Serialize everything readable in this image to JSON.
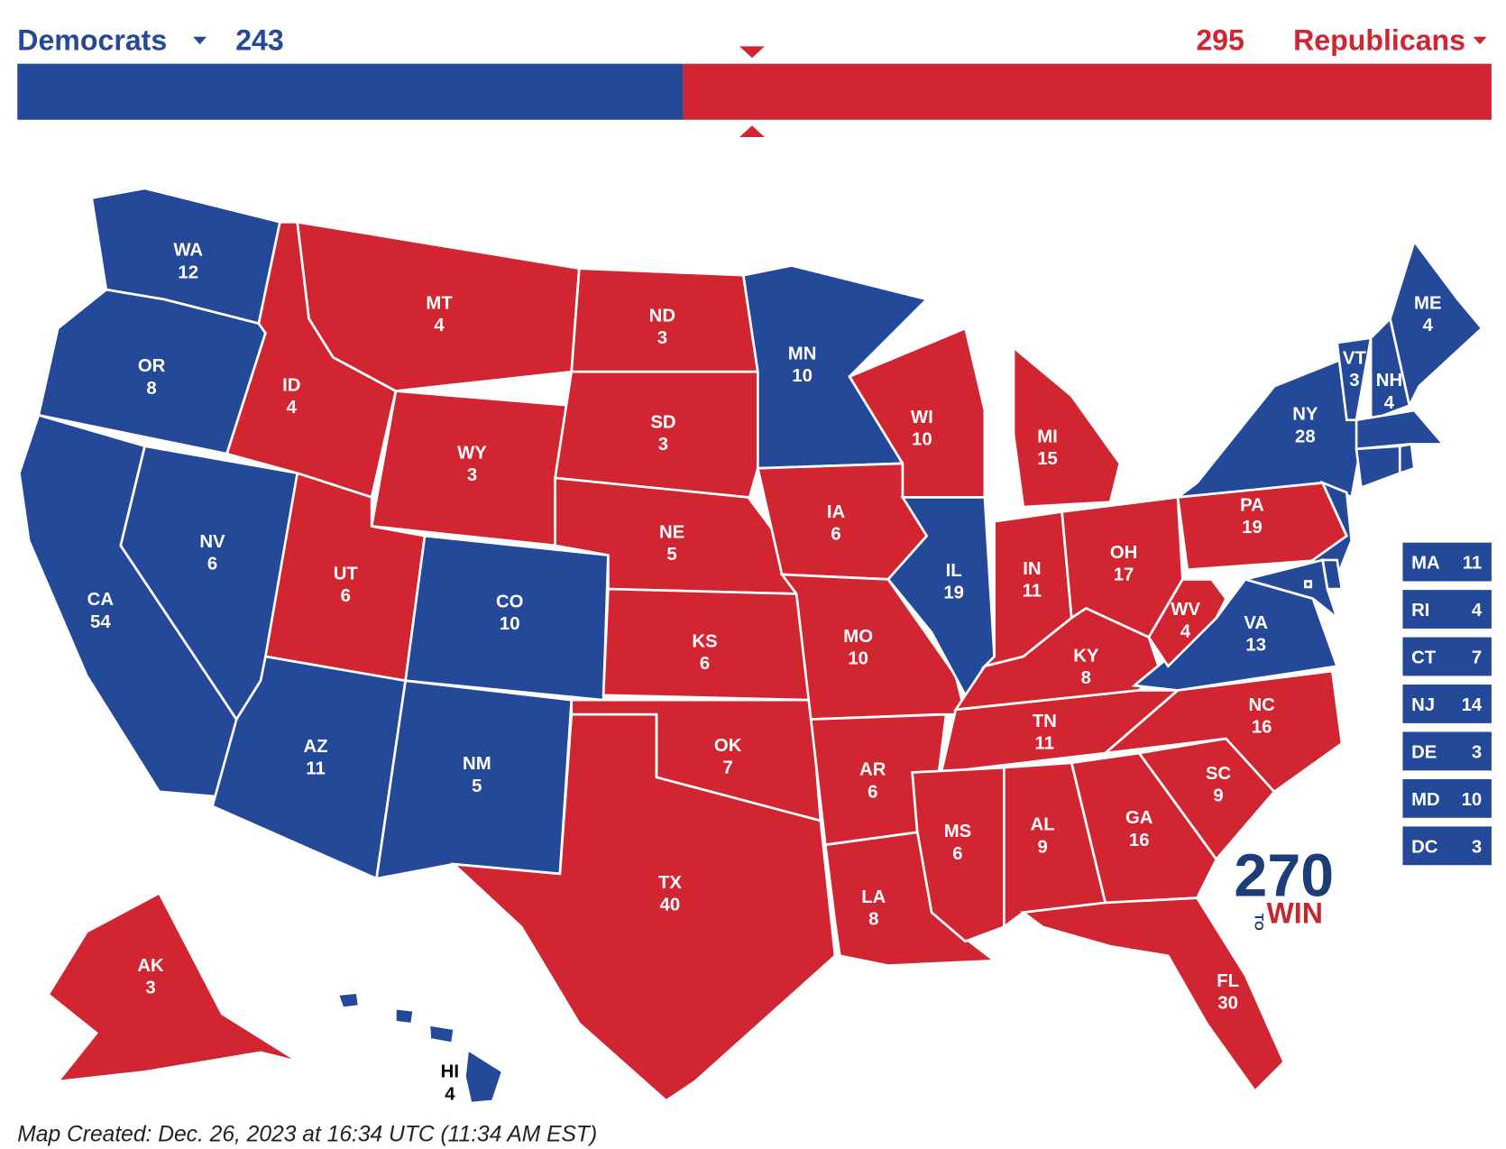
{
  "header": {
    "democrats": {
      "name": "Democrats",
      "total": 243,
      "color": "#244999"
    },
    "republicans": {
      "name": "Republicans",
      "total": 295,
      "color": "#d22532"
    }
  },
  "states": [
    {
      "abbr": "WA",
      "ev": 12,
      "party": "democrats"
    },
    {
      "abbr": "OR",
      "ev": 8,
      "party": "democrats"
    },
    {
      "abbr": "CA",
      "ev": 54,
      "party": "democrats"
    },
    {
      "abbr": "NV",
      "ev": 6,
      "party": "democrats"
    },
    {
      "abbr": "ID",
      "ev": 4,
      "party": "republicans"
    },
    {
      "abbr": "MT",
      "ev": 4,
      "party": "republicans"
    },
    {
      "abbr": "WY",
      "ev": 3,
      "party": "republicans"
    },
    {
      "abbr": "UT",
      "ev": 6,
      "party": "republicans"
    },
    {
      "abbr": "CO",
      "ev": 10,
      "party": "democrats"
    },
    {
      "abbr": "AZ",
      "ev": 11,
      "party": "democrats"
    },
    {
      "abbr": "NM",
      "ev": 5,
      "party": "democrats"
    },
    {
      "abbr": "ND",
      "ev": 3,
      "party": "republicans"
    },
    {
      "abbr": "SD",
      "ev": 3,
      "party": "republicans"
    },
    {
      "abbr": "NE",
      "ev": 5,
      "party": "republicans"
    },
    {
      "abbr": "KS",
      "ev": 6,
      "party": "republicans"
    },
    {
      "abbr": "OK",
      "ev": 7,
      "party": "republicans"
    },
    {
      "abbr": "TX",
      "ev": 40,
      "party": "republicans"
    },
    {
      "abbr": "MN",
      "ev": 10,
      "party": "democrats"
    },
    {
      "abbr": "IA",
      "ev": 6,
      "party": "republicans"
    },
    {
      "abbr": "MO",
      "ev": 10,
      "party": "republicans"
    },
    {
      "abbr": "AR",
      "ev": 6,
      "party": "republicans"
    },
    {
      "abbr": "LA",
      "ev": 8,
      "party": "republicans"
    },
    {
      "abbr": "WI",
      "ev": 10,
      "party": "republicans"
    },
    {
      "abbr": "IL",
      "ev": 19,
      "party": "democrats"
    },
    {
      "abbr": "MI",
      "ev": 15,
      "party": "republicans"
    },
    {
      "abbr": "IN",
      "ev": 11,
      "party": "republicans"
    },
    {
      "abbr": "OH",
      "ev": 17,
      "party": "republicans"
    },
    {
      "abbr": "KY",
      "ev": 8,
      "party": "republicans"
    },
    {
      "abbr": "TN",
      "ev": 11,
      "party": "republicans"
    },
    {
      "abbr": "MS",
      "ev": 6,
      "party": "republicans"
    },
    {
      "abbr": "AL",
      "ev": 9,
      "party": "republicans"
    },
    {
      "abbr": "GA",
      "ev": 16,
      "party": "republicans"
    },
    {
      "abbr": "FL",
      "ev": 30,
      "party": "republicans"
    },
    {
      "abbr": "SC",
      "ev": 9,
      "party": "republicans"
    },
    {
      "abbr": "NC",
      "ev": 16,
      "party": "republicans"
    },
    {
      "abbr": "VA",
      "ev": 13,
      "party": "democrats"
    },
    {
      "abbr": "WV",
      "ev": 4,
      "party": "republicans"
    },
    {
      "abbr": "PA",
      "ev": 19,
      "party": "republicans"
    },
    {
      "abbr": "NY",
      "ev": 28,
      "party": "democrats"
    },
    {
      "abbr": "VT",
      "ev": 3,
      "party": "democrats"
    },
    {
      "abbr": "NH",
      "ev": 4,
      "party": "democrats"
    },
    {
      "abbr": "ME",
      "ev": 4,
      "party": "democrats"
    },
    {
      "abbr": "AK",
      "ev": 3,
      "party": "republicans"
    },
    {
      "abbr": "HI",
      "ev": 4,
      "party": "democrats"
    },
    {
      "abbr": "MA",
      "ev": 11,
      "party": "democrats"
    },
    {
      "abbr": "RI",
      "ev": 4,
      "party": "democrats"
    },
    {
      "abbr": "CT",
      "ev": 7,
      "party": "democrats"
    },
    {
      "abbr": "NJ",
      "ev": 14,
      "party": "democrats"
    },
    {
      "abbr": "DE",
      "ev": 3,
      "party": "democrats"
    },
    {
      "abbr": "MD",
      "ev": 10,
      "party": "democrats"
    },
    {
      "abbr": "DC",
      "ev": 3,
      "party": "democrats"
    }
  ],
  "logo": {
    "number": "270",
    "to": "TO",
    "win": "WIN"
  },
  "footer": "Map Created: Dec. 26, 2023 at 16:34 UTC (11:34 AM EST)"
}
